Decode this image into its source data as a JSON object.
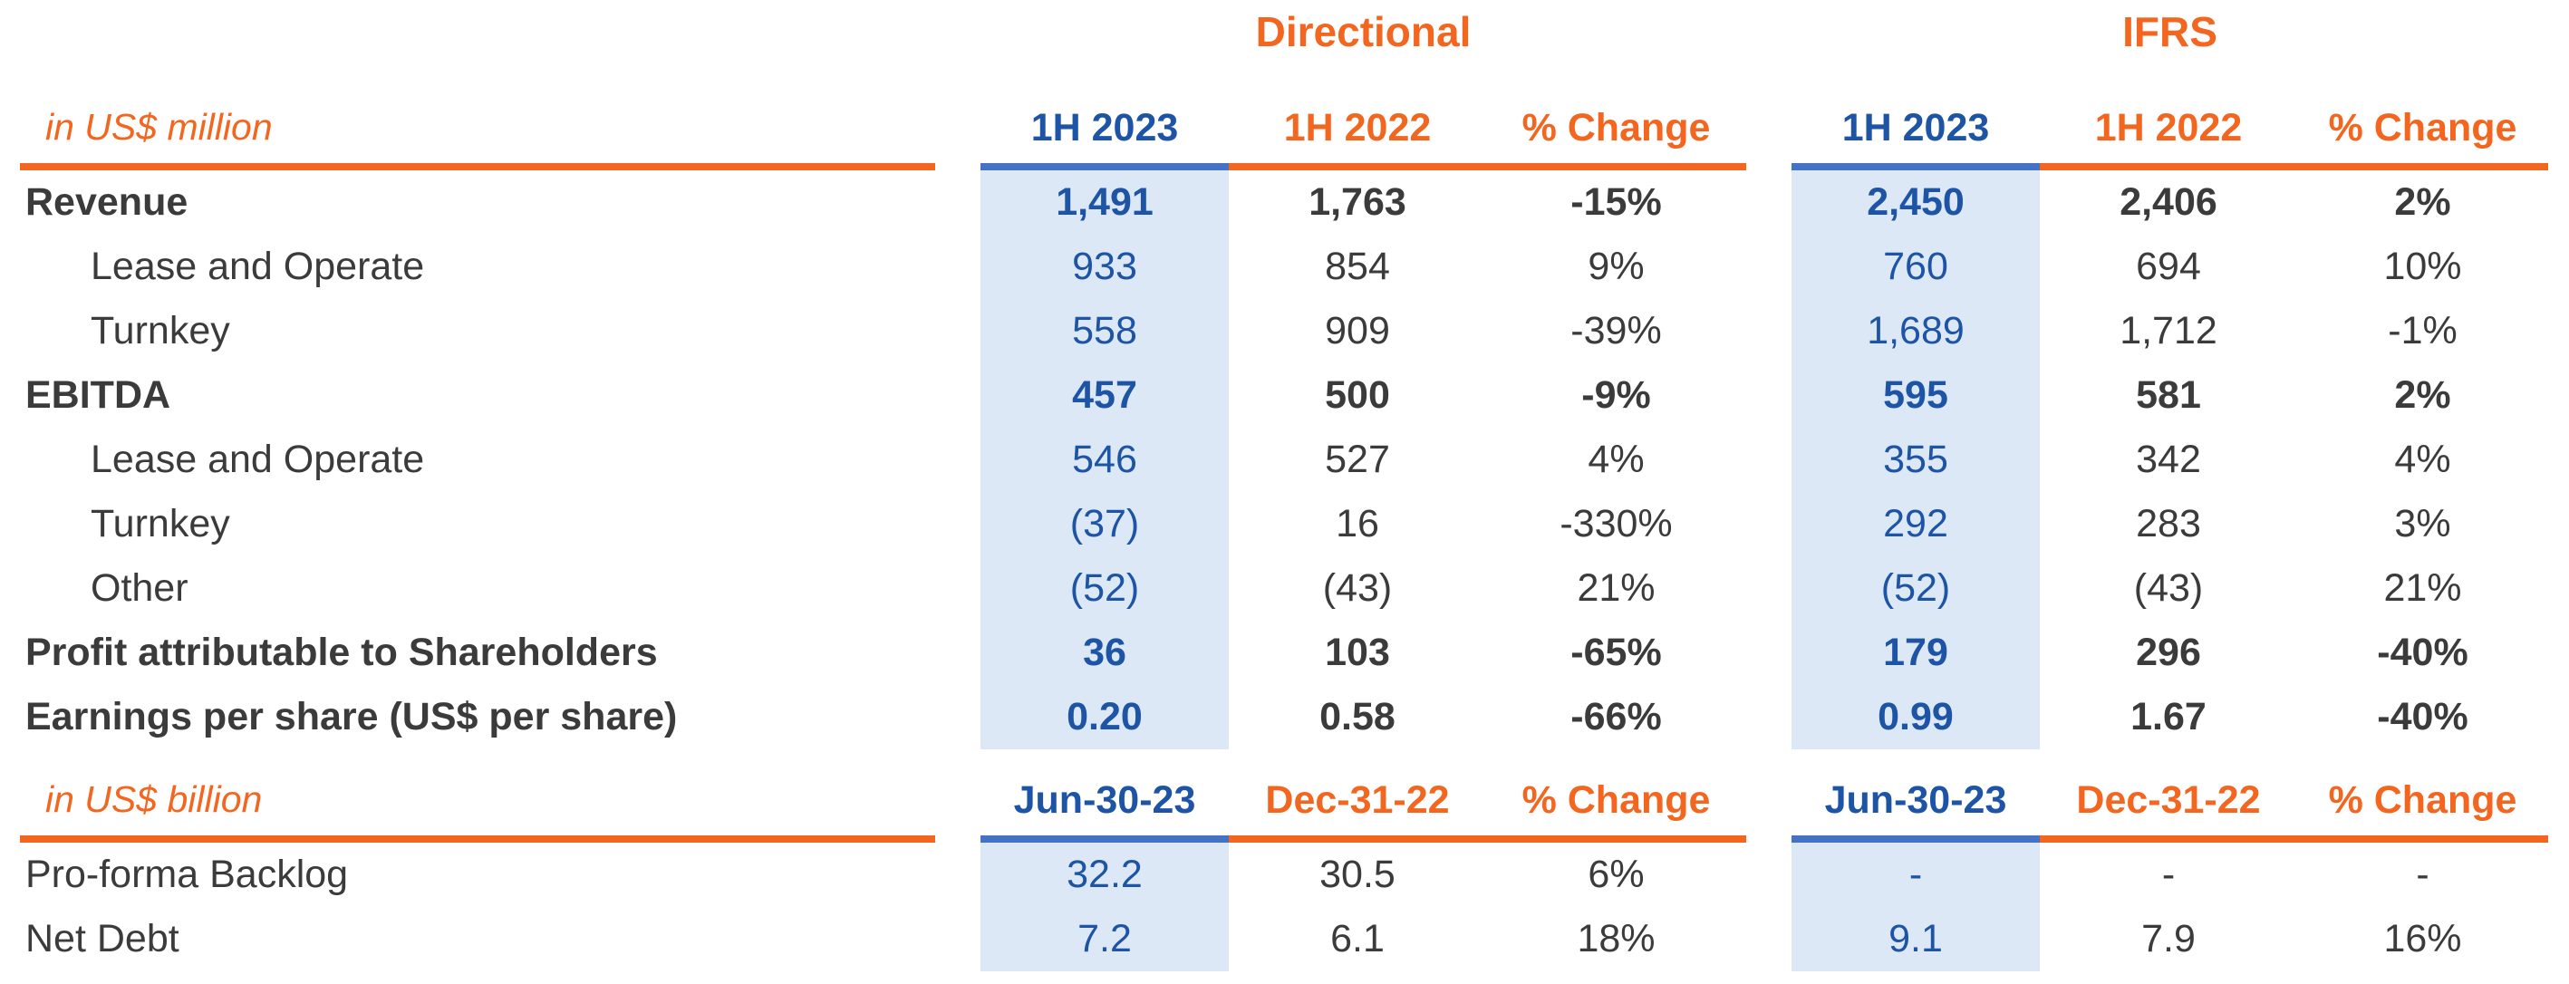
{
  "colors": {
    "orange": "#F3661F",
    "blue_dark": "#1D54A5",
    "blue_bar": "#4472C4",
    "highlight_bg": "#DCE8F5",
    "text_dark": "#3B3B3B"
  },
  "groups": [
    {
      "title": "Directional"
    },
    {
      "title": "IFRS"
    }
  ],
  "section1": {
    "unit_label": "in US$ million",
    "col_headers": [
      "1H 2023",
      "1H 2022",
      "% Change"
    ],
    "rows": [
      {
        "label": "Revenue",
        "bold": true,
        "indent": false,
        "directional": [
          "1,491",
          "1,763",
          "-15%"
        ],
        "ifrs": [
          "2,450",
          "2,406",
          "2%"
        ]
      },
      {
        "label": "Lease and Operate",
        "bold": false,
        "indent": true,
        "directional": [
          "933",
          "854",
          "9%"
        ],
        "ifrs": [
          "760",
          "694",
          "10%"
        ]
      },
      {
        "label": "Turnkey",
        "bold": false,
        "indent": true,
        "directional": [
          "558",
          "909",
          "-39%"
        ],
        "ifrs": [
          "1,689",
          "1,712",
          "-1%"
        ]
      },
      {
        "label": "EBITDA",
        "bold": true,
        "indent": false,
        "directional": [
          "457",
          "500",
          "-9%"
        ],
        "ifrs": [
          "595",
          "581",
          "2%"
        ]
      },
      {
        "label": "Lease and Operate",
        "bold": false,
        "indent": true,
        "directional": [
          "546",
          "527",
          "4%"
        ],
        "ifrs": [
          "355",
          "342",
          "4%"
        ]
      },
      {
        "label": "Turnkey",
        "bold": false,
        "indent": true,
        "directional": [
          "(37)",
          "16",
          "-330%"
        ],
        "ifrs": [
          "292",
          "283",
          "3%"
        ]
      },
      {
        "label": "Other",
        "bold": false,
        "indent": true,
        "directional": [
          "(52)",
          "(43)",
          "21%"
        ],
        "ifrs": [
          "(52)",
          "(43)",
          "21%"
        ]
      },
      {
        "label": "Profit attributable to Shareholders",
        "bold": true,
        "indent": false,
        "directional": [
          "36",
          "103",
          "-65%"
        ],
        "ifrs": [
          "179",
          "296",
          "-40%"
        ]
      },
      {
        "label": "Earnings per share (US$ per share)",
        "bold": true,
        "indent": false,
        "directional": [
          "0.20",
          "0.58",
          "-66%"
        ],
        "ifrs": [
          "0.99",
          "1.67",
          "-40%"
        ]
      }
    ]
  },
  "section2": {
    "unit_label": "in US$ billion",
    "col_headers": [
      "Jun-30-23",
      "Dec-31-22",
      "% Change"
    ],
    "rows": [
      {
        "label": "Pro-forma Backlog",
        "directional": [
          "32.2",
          "30.5",
          "6%"
        ],
        "ifrs": [
          "-",
          "-",
          "-"
        ]
      },
      {
        "label": "Net Debt",
        "directional": [
          "7.2",
          "6.1",
          "18%"
        ],
        "ifrs": [
          "9.1",
          "7.9",
          "16%"
        ]
      }
    ]
  }
}
